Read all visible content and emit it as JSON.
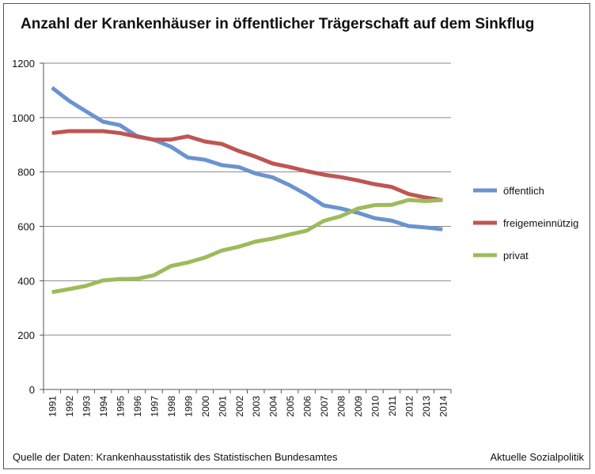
{
  "header": {
    "title": "Anzahl der Krankenhäuser in öffentlicher Trägerschaft auf dem Sinkflug"
  },
  "footer": {
    "source": "Quelle der Daten: Krankenhausstatistik des Statistischen Bundesamtes",
    "credit": "Aktuelle Sozialpolitik"
  },
  "chart_data": {
    "type": "line",
    "title": "Anzahl der Krankenhäuser in öffentlicher Trägerschaft auf dem Sinkflug",
    "xlabel": "",
    "ylabel": "",
    "ylim": [
      0,
      1200
    ],
    "yticks": [
      0,
      200,
      400,
      600,
      800,
      1000,
      1200
    ],
    "grid": true,
    "legend": "right",
    "categories": [
      "1991",
      "1992",
      "1993",
      "1994",
      "1995",
      "1996",
      "1997",
      "1998",
      "1999",
      "2000",
      "2001",
      "2002",
      "2003",
      "2004",
      "2005",
      "2006",
      "2007",
      "2008",
      "2009",
      "2010",
      "2011",
      "2012",
      "2013",
      "2014"
    ],
    "series": [
      {
        "name": "öffentlich",
        "color": "#6a93cf",
        "values": [
          1110,
          1062,
          1023,
          985,
          972,
          932,
          918,
          893,
          853,
          845,
          825,
          818,
          794,
          780,
          751,
          717,
          677,
          666,
          650,
          630,
          621,
          601,
          596,
          589
        ]
      },
      {
        "name": "freigemeinnützig",
        "color": "#bf5552",
        "values": [
          943,
          950,
          950,
          950,
          943,
          930,
          919,
          919,
          931,
          912,
          903,
          877,
          856,
          831,
          818,
          803,
          790,
          781,
          769,
          755,
          745,
          719,
          706,
          696
        ]
      },
      {
        "name": "privat",
        "color": "#9dbb5a",
        "values": [
          358,
          369,
          381,
          401,
          406,
          407,
          420,
          454,
          467,
          485,
          511,
          525,
          544,
          555,
          570,
          584,
          620,
          637,
          665,
          678,
          679,
          697,
          693,
          697
        ]
      }
    ]
  }
}
